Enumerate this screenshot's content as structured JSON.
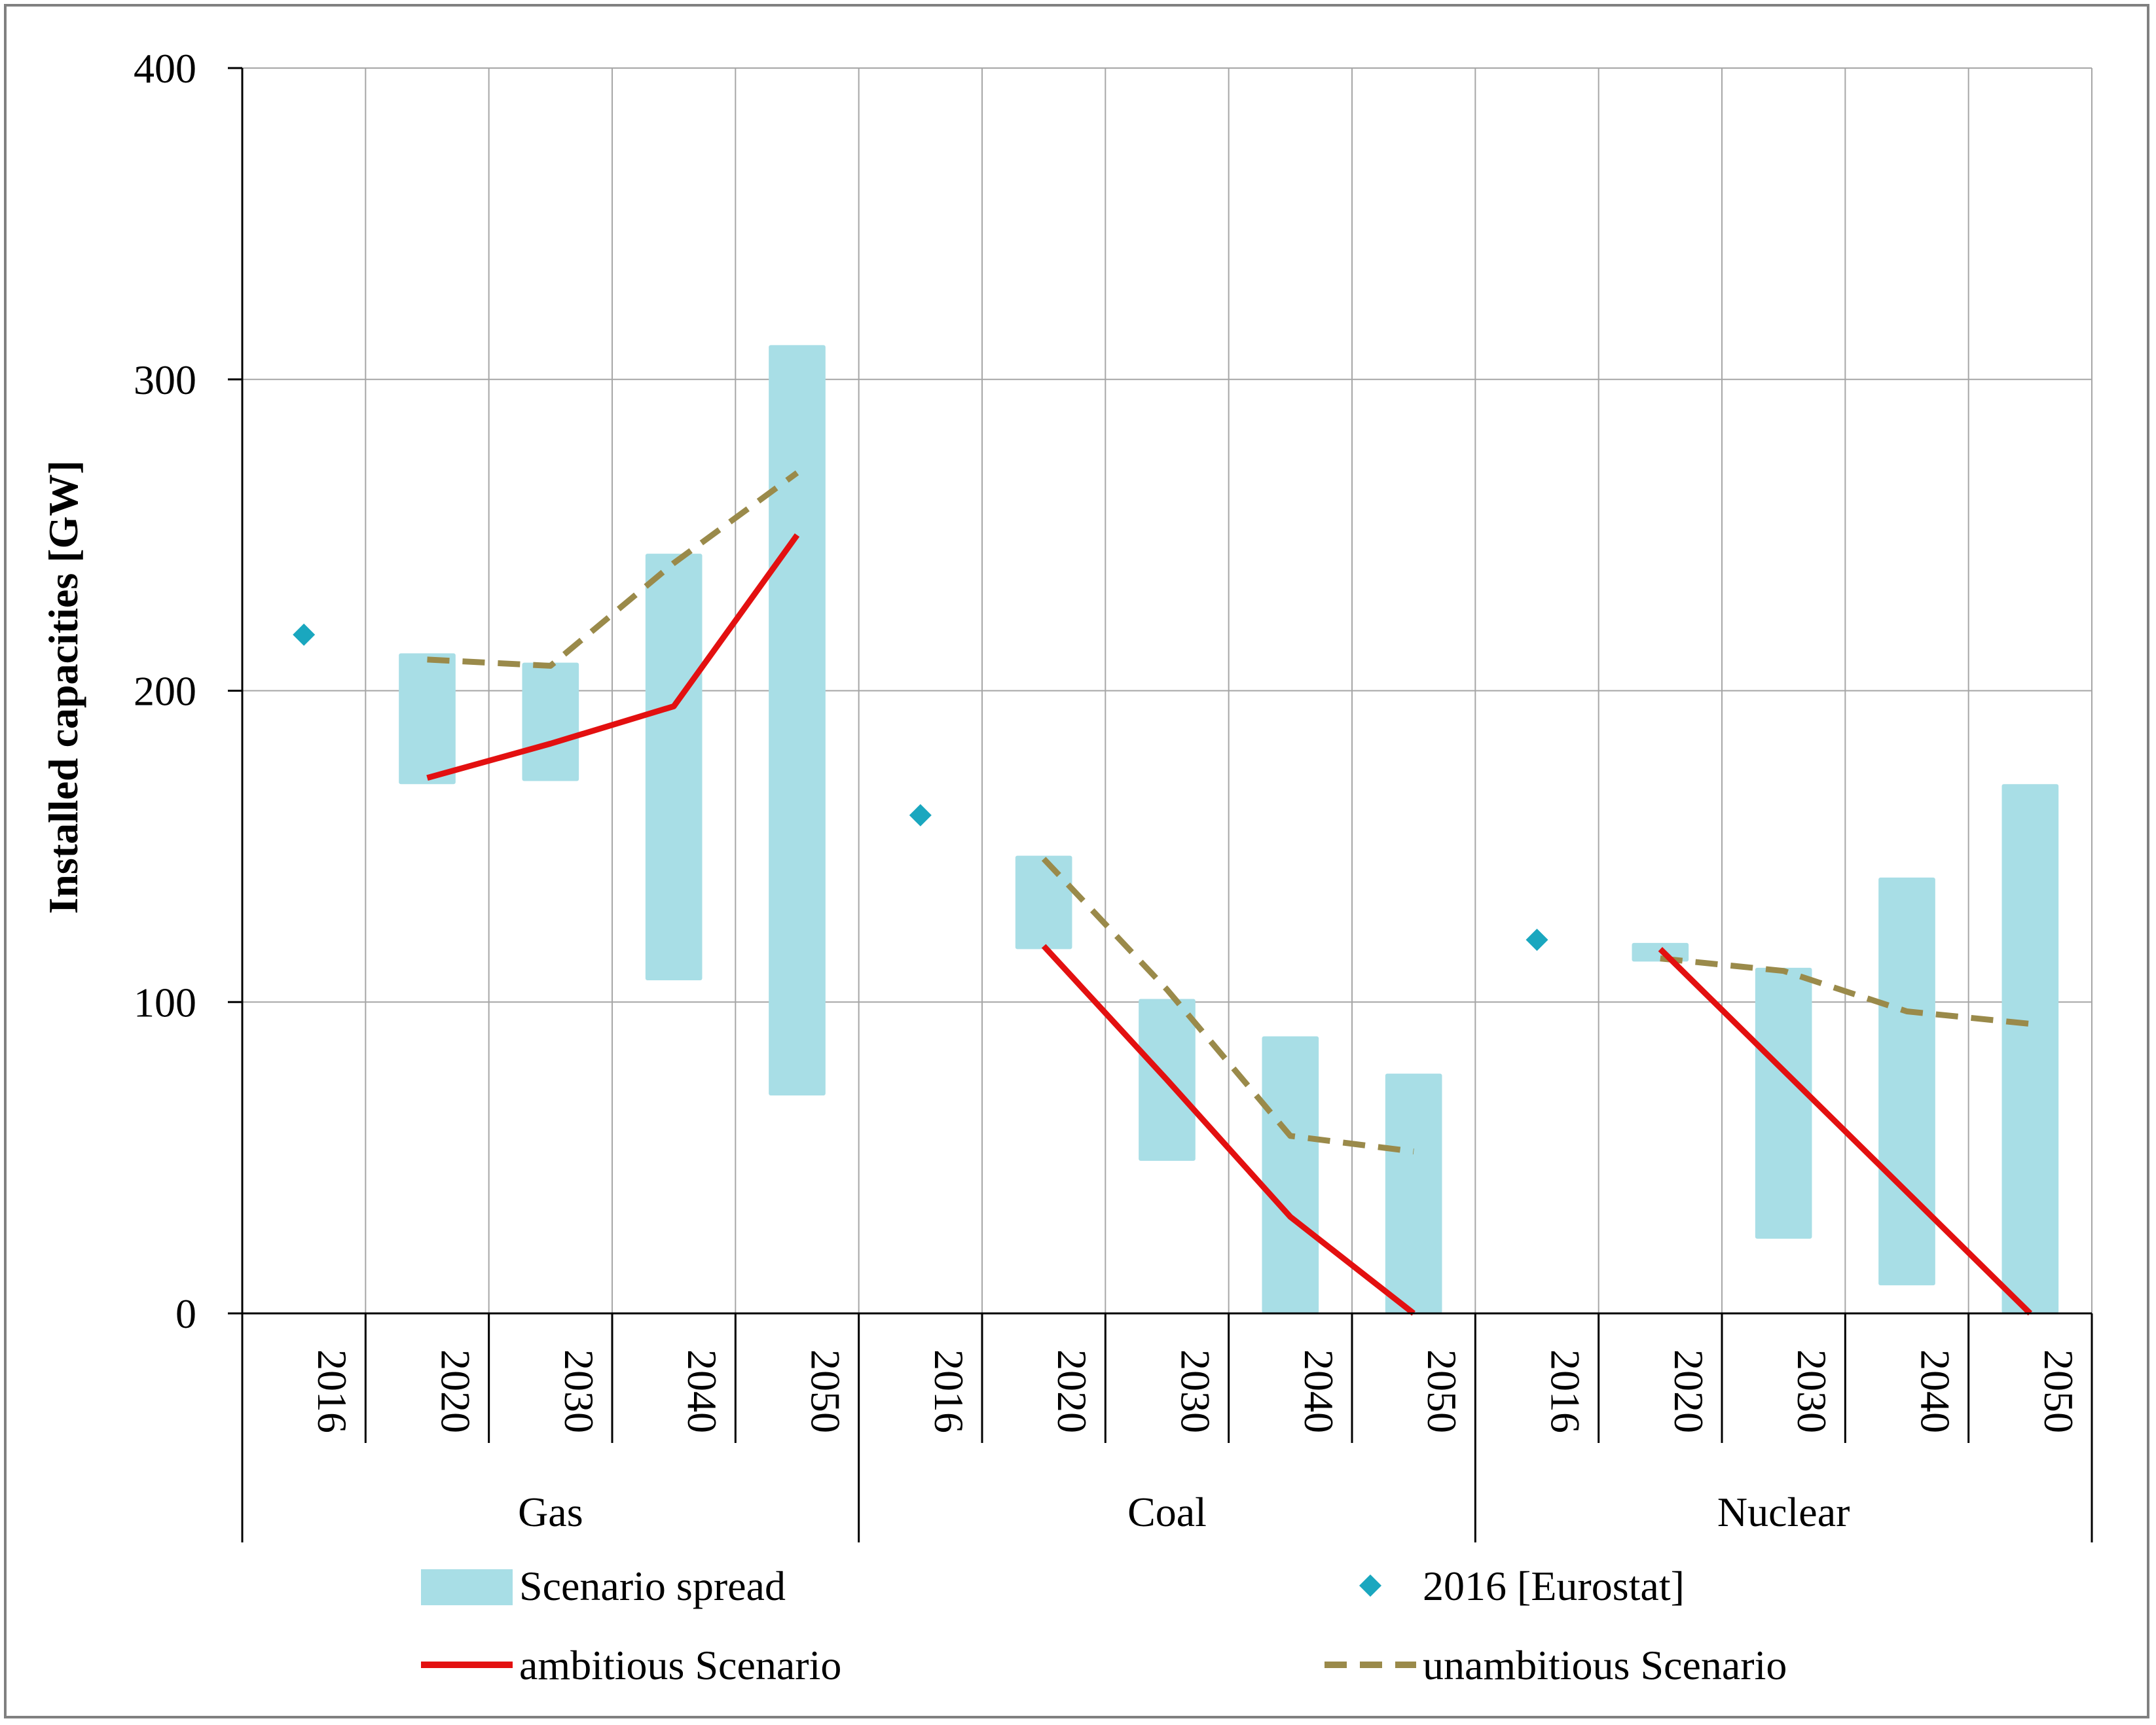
{
  "chart_data": {
    "type": "bar",
    "ylabel": "Installed capacities [GW]",
    "ylim": [
      0,
      400
    ],
    "yticks": [
      0,
      100,
      200,
      300,
      400
    ],
    "grid": true,
    "groups": [
      {
        "name": "Gas",
        "years": [
          "2016",
          "2020",
          "2030",
          "2040",
          "2050"
        ],
        "spread": [
          null,
          [
            170,
            212
          ],
          [
            171,
            209
          ],
          [
            107,
            244
          ],
          [
            70,
            311
          ]
        ],
        "eurostat_2016": 218,
        "ambitious": [
          null,
          172,
          183,
          195,
          250
        ],
        "unambitious": [
          null,
          210,
          208,
          241,
          270
        ]
      },
      {
        "name": "Coal",
        "years": [
          "2016",
          "2020",
          "2030",
          "2040",
          "2050"
        ],
        "spread": [
          null,
          [
            117,
            147
          ],
          [
            49,
            101
          ],
          [
            0,
            89
          ],
          [
            0,
            77
          ]
        ],
        "eurostat_2016": 160,
        "ambitious": [
          null,
          118,
          75,
          31,
          0
        ],
        "unambitious": [
          null,
          146,
          104,
          57,
          52
        ]
      },
      {
        "name": "Nuclear",
        "years": [
          "2016",
          "2020",
          "2030",
          "2040",
          "2050"
        ],
        "spread": [
          null,
          [
            113,
            119
          ],
          [
            24,
            111
          ],
          [
            9,
            140
          ],
          [
            0,
            170
          ]
        ],
        "eurostat_2016": 120,
        "ambitious": [
          null,
          117,
          78,
          39,
          0
        ],
        "unambitious": [
          null,
          114,
          110,
          97,
          93
        ]
      }
    ],
    "legend": {
      "placement": "bottom",
      "items": [
        {
          "key": "spread",
          "label": "Scenario spread"
        },
        {
          "key": "eurostat",
          "label": "2016 [Eurostat]"
        },
        {
          "key": "ambitious",
          "label": "ambitious Scenario"
        },
        {
          "key": "unambitious",
          "label": "unambitious Scenario"
        }
      ]
    },
    "colors": {
      "spread": "#a8dee6",
      "eurostat": "#1aa7bf",
      "ambitious": "#e31010",
      "unambitious": "#9a8a4a",
      "grid": "#a6a6a6",
      "axis": "#000000"
    }
  }
}
